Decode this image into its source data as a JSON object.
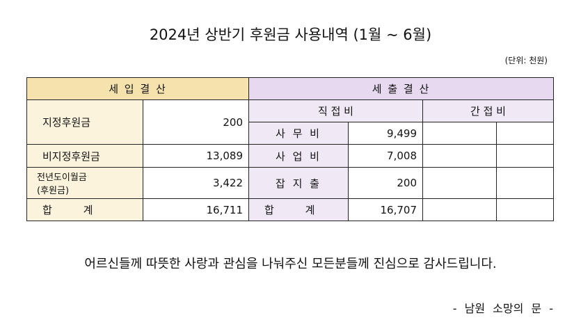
{
  "header": {
    "title": "2024년 상반기 후원금 사용내역 (1월 ~ 6월)",
    "unit": "(단위: 천원)"
  },
  "table": {
    "income_header": "세 입 결 산",
    "expense_header": "세 출 결 산",
    "direct_header": "직 접 비",
    "indirect_header": "간 접 비",
    "income_rows": [
      {
        "label": [
          "지정후원금"
        ],
        "value": "200"
      },
      {
        "label": [
          "비지정후원금"
        ],
        "value": "13,089"
      },
      {
        "label": [
          "전년도이월금",
          "(후원금)"
        ],
        "value": "3,422"
      },
      {
        "label": [
          "합 계"
        ],
        "value": "16,711"
      }
    ],
    "expense_rows": [
      {
        "label": "사 무 비",
        "value": "9,499"
      },
      {
        "label": "사 업 비",
        "value": "7,008"
      },
      {
        "label": "잡 지 출",
        "value": "200"
      },
      {
        "label": "합 계",
        "value": "16,707"
      }
    ]
  },
  "footer": {
    "message": "어르신들께 따뜻한 사랑과 관심을 나눠주신 모든분들께 진심으로 감사드립니다.",
    "signature": "- 남원 소망의 문 -"
  }
}
